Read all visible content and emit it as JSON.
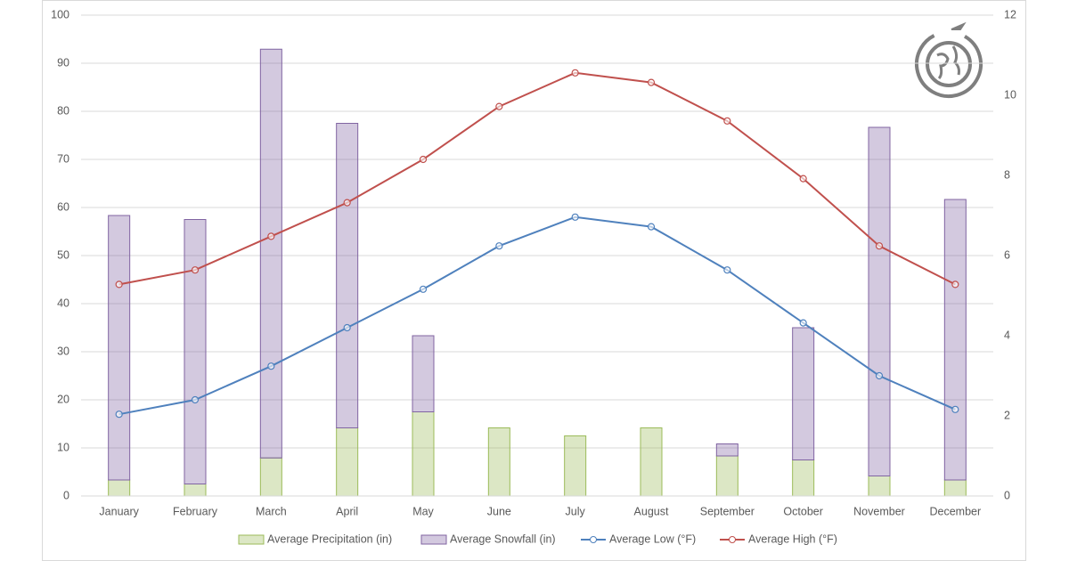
{
  "chart_data": {
    "type": "combo",
    "categories": [
      "January",
      "February",
      "March",
      "April",
      "May",
      "June",
      "July",
      "August",
      "September",
      "October",
      "November",
      "December"
    ],
    "ylim": [
      0,
      100
    ],
    "yticks": [
      0,
      10,
      20,
      30,
      40,
      50,
      60,
      70,
      80,
      90,
      100
    ],
    "y2lim": [
      0,
      12
    ],
    "y2ticks": [
      0,
      2,
      4,
      6,
      8,
      10,
      12
    ],
    "grid": true,
    "stacked": true,
    "legend": "bottom",
    "series": [
      {
        "name": "Average Precipitation (in)",
        "type": "bar",
        "axis": "y2",
        "color": "#9bbb59",
        "values": [
          0.4,
          0.3,
          0.95,
          1.7,
          2.1,
          1.7,
          1.5,
          1.7,
          1.0,
          0.9,
          0.5,
          0.4
        ]
      },
      {
        "name": "Average Snowfall (in)",
        "type": "bar",
        "axis": "y2",
        "color": "#8064a2",
        "values": [
          6.6,
          6.6,
          10.2,
          7.6,
          1.9,
          0,
          0,
          0,
          0.3,
          3.3,
          8.7,
          7.0
        ]
      },
      {
        "name": "Average Low (°F)",
        "type": "line",
        "color": "#4f81bd",
        "values": [
          17,
          20,
          27,
          35,
          43,
          52,
          58,
          56,
          47,
          36,
          25,
          18
        ]
      },
      {
        "name": "Average High (°F)",
        "type": "line",
        "color": "#c0504d",
        "values": [
          44,
          47,
          54,
          61,
          70,
          81,
          88,
          86,
          78,
          66,
          52,
          44
        ]
      }
    ]
  }
}
